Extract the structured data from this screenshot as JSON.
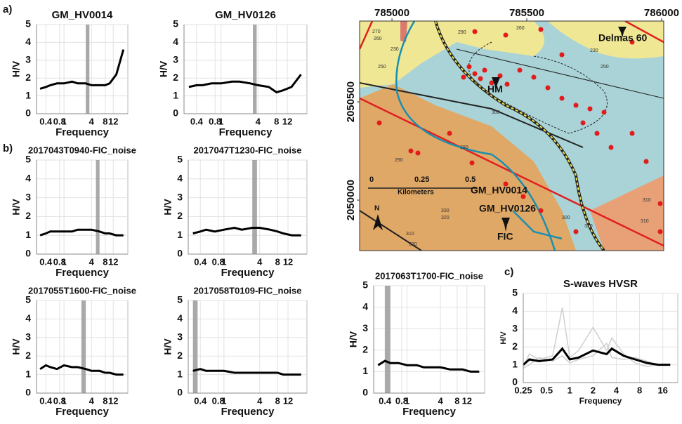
{
  "panel_labels": [
    "a)",
    "b)",
    "c)"
  ],
  "chart_data": [
    {
      "type": "line",
      "title": "GM_HV0014",
      "x_label": "Frequency",
      "y_label": "H/V",
      "xscale": "log",
      "grid": true,
      "xlim": [
        0.25,
        25
      ],
      "ylim": [
        0,
        5
      ],
      "xticks": [
        0.4,
        0.8,
        1,
        4,
        8,
        12
      ],
      "yticks": [
        0,
        1,
        2,
        3,
        4,
        5
      ],
      "shaded_range": [
        3,
        3.6
      ],
      "x": [
        0.3,
        0.4,
        0.5,
        0.7,
        1,
        1.5,
        2,
        3,
        4,
        6,
        8,
        10,
        14,
        20
      ],
      "series": [
        {
          "name": "mean",
          "color": "#000000",
          "values": [
            1.4,
            1.5,
            1.6,
            1.7,
            1.7,
            1.8,
            1.7,
            1.7,
            1.6,
            1.6,
            1.6,
            1.7,
            2.2,
            3.6
          ]
        }
      ]
    },
    {
      "type": "line",
      "title": "GM_HV0126",
      "x_label": "Frequency",
      "y_label": "H/V",
      "xscale": "log",
      "grid": true,
      "xlim": [
        0.25,
        25
      ],
      "ylim": [
        0,
        5
      ],
      "xticks": [
        0.4,
        0.8,
        1,
        4,
        8,
        12
      ],
      "yticks": [
        0,
        1,
        2,
        3,
        4,
        5
      ],
      "shaded_range": [
        3.3,
        3.8
      ],
      "x": [
        0.3,
        0.4,
        0.5,
        0.7,
        1,
        1.5,
        2,
        3,
        4,
        6,
        8,
        10,
        14,
        20
      ],
      "series": [
        {
          "name": "mean",
          "color": "#000000",
          "values": [
            1.5,
            1.6,
            1.6,
            1.7,
            1.7,
            1.8,
            1.8,
            1.7,
            1.6,
            1.5,
            1.2,
            1.3,
            1.5,
            2.2
          ]
        }
      ]
    },
    {
      "type": "line",
      "title": "2017043T0940-FIC_noise",
      "x_label": "Frequency",
      "y_label": "H/V",
      "xscale": "log",
      "grid": true,
      "xlim": [
        0.25,
        25
      ],
      "ylim": [
        0,
        5
      ],
      "xticks": [
        0.4,
        0.8,
        1,
        4,
        8,
        12
      ],
      "yticks": [
        0,
        1,
        2,
        3,
        4,
        5
      ],
      "shaded_range": [
        5,
        6
      ],
      "x": [
        0.3,
        0.4,
        0.5,
        0.7,
        1,
        1.5,
        2,
        3,
        4,
        6,
        8,
        10,
        14,
        20
      ],
      "series": [
        {
          "name": "mean",
          "color": "#000000",
          "values": [
            1.0,
            1.1,
            1.2,
            1.2,
            1.2,
            1.2,
            1.3,
            1.3,
            1.3,
            1.2,
            1.1,
            1.1,
            1.0,
            1.0
          ]
        }
      ]
    },
    {
      "type": "line",
      "title": "2017047T1230-FIC_noise",
      "x_label": "Frequency",
      "y_label": "H/V",
      "xscale": "log",
      "grid": true,
      "xlim": [
        0.25,
        25
      ],
      "ylim": [
        0,
        5
      ],
      "xticks": [
        0.4,
        0.8,
        1,
        4,
        8,
        12
      ],
      "yticks": [
        0,
        1,
        2,
        3,
        4,
        5
      ],
      "shaded_range": [
        3,
        3.6
      ],
      "x": [
        0.3,
        0.4,
        0.5,
        0.7,
        1,
        1.5,
        2,
        3,
        4,
        6,
        8,
        10,
        14,
        20
      ],
      "series": [
        {
          "name": "mean",
          "color": "#000000",
          "values": [
            1.1,
            1.2,
            1.3,
            1.2,
            1.3,
            1.4,
            1.3,
            1.4,
            1.4,
            1.3,
            1.2,
            1.1,
            1.0,
            1.0
          ]
        }
      ]
    },
    {
      "type": "line",
      "title": "2017055T1600-FIC_noise",
      "x_label": "Frequency",
      "y_label": "H/V",
      "xscale": "log",
      "grid": true,
      "xlim": [
        0.25,
        25
      ],
      "ylim": [
        0,
        5
      ],
      "xticks": [
        0.4,
        0.8,
        1,
        4,
        8,
        12
      ],
      "yticks": [
        0,
        1,
        2,
        3,
        4,
        5
      ],
      "shaded_range": [
        2.4,
        3
      ],
      "x": [
        0.3,
        0.4,
        0.5,
        0.7,
        1,
        1.5,
        2,
        3,
        4,
        6,
        8,
        10,
        14,
        20
      ],
      "series": [
        {
          "name": "mean",
          "color": "#000000",
          "values": [
            1.3,
            1.5,
            1.4,
            1.3,
            1.5,
            1.4,
            1.4,
            1.3,
            1.2,
            1.2,
            1.1,
            1.1,
            1.0,
            1.0
          ]
        }
      ]
    },
    {
      "type": "line",
      "title": "2017058T0109-FIC_noise",
      "x_label": "Frequency",
      "y_label": "H/V",
      "xscale": "log",
      "grid": true,
      "xlim": [
        0.25,
        25
      ],
      "ylim": [
        0,
        5
      ],
      "xticks": [
        0.4,
        0.8,
        1,
        4,
        8,
        12
      ],
      "yticks": [
        0,
        1,
        2,
        3,
        4,
        5
      ],
      "shaded_range": [
        0.3,
        0.36
      ],
      "x": [
        0.3,
        0.4,
        0.5,
        0.7,
        1,
        1.5,
        2,
        3,
        4,
        6,
        8,
        10,
        14,
        20
      ],
      "series": [
        {
          "name": "mean",
          "color": "#000000",
          "values": [
            1.2,
            1.3,
            1.2,
            1.2,
            1.2,
            1.1,
            1.1,
            1.1,
            1.1,
            1.1,
            1.1,
            1.0,
            1.0,
            1.0
          ]
        }
      ]
    },
    {
      "type": "line",
      "title": "2017063T1700-FIC_noise",
      "x_label": "Frequency",
      "y_label": "H/V",
      "xscale": "log",
      "grid": true,
      "xlim": [
        0.25,
        25
      ],
      "ylim": [
        0,
        5
      ],
      "xticks": [
        0.4,
        0.8,
        1,
        4,
        8,
        12
      ],
      "yticks": [
        0,
        1,
        2,
        3,
        4,
        5
      ],
      "shaded_range": [
        0.4,
        0.5
      ],
      "x": [
        0.3,
        0.4,
        0.5,
        0.7,
        1,
        1.5,
        2,
        3,
        4,
        6,
        8,
        10,
        14,
        20
      ],
      "series": [
        {
          "name": "mean",
          "color": "#000000",
          "values": [
            1.3,
            1.5,
            1.4,
            1.4,
            1.3,
            1.3,
            1.2,
            1.2,
            1.2,
            1.1,
            1.1,
            1.1,
            1.0,
            1.0
          ]
        }
      ]
    },
    {
      "type": "line",
      "title": "S-waves HVSR",
      "x_label": "Frequency",
      "y_label": "H/V",
      "xscale": "log",
      "grid": true,
      "xlim": [
        0.25,
        25
      ],
      "ylim": [
        0,
        5
      ],
      "xticks": [
        0.25,
        0.5,
        1,
        2,
        4,
        8,
        16
      ],
      "yticks": [
        0,
        1,
        2,
        3,
        4,
        5
      ],
      "x": [
        0.25,
        0.3,
        0.4,
        0.6,
        0.8,
        1,
        1.3,
        2,
        3,
        3.5,
        5,
        7,
        10,
        14,
        20
      ],
      "series": [
        {
          "name": "station 1",
          "color": "#cfcfcf",
          "values": [
            0.9,
            1.6,
            1.3,
            1.5,
            4.2,
            1.4,
            1.8,
            3.1,
            1.8,
            2.5,
            1.6,
            1.1,
            0.9,
            1.0,
            1.0
          ]
        },
        {
          "name": "station 2",
          "color": "#cfcfcf",
          "values": [
            0.8,
            1.0,
            1.4,
            1.2,
            1.5,
            1.1,
            1.3,
            1.5,
            2.2,
            1.4,
            1.3,
            1.4,
            1.2,
            1.0,
            1.0
          ]
        },
        {
          "name": "mean",
          "color": "#000000",
          "values": [
            1.0,
            1.3,
            1.2,
            1.3,
            1.9,
            1.3,
            1.4,
            1.8,
            1.6,
            1.9,
            1.5,
            1.3,
            1.1,
            1.0,
            1.0
          ]
        }
      ]
    }
  ],
  "map": {
    "xticks": [
      785000,
      785500,
      786000
    ],
    "yticks": [
      2050500,
      2050000
    ],
    "xlim": [
      784880,
      786008
    ],
    "ylim": [
      2049743,
      2050911
    ],
    "labels": [
      "Delmas 60",
      "HM",
      "GM_HV0014",
      "GM_HV0126",
      "FIC"
    ],
    "scale_labels": [
      "0",
      "0.25",
      "0.5",
      "Kilometers"
    ],
    "north": "N",
    "contours": [
      "270",
      "260",
      "250",
      "230",
      "290",
      "260",
      "250",
      "230",
      "280",
      "290",
      "300",
      "310",
      "320",
      "330",
      "320",
      "310",
      "300",
      "310",
      "320"
    ]
  }
}
